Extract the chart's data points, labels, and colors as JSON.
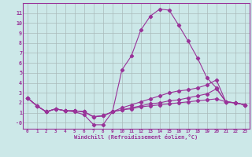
{
  "x": [
    0,
    1,
    2,
    3,
    4,
    5,
    6,
    7,
    8,
    9,
    10,
    11,
    12,
    13,
    14,
    15,
    16,
    17,
    18,
    19,
    20,
    21,
    22,
    23
  ],
  "line1": [
    2.5,
    1.7,
    1.1,
    1.4,
    1.2,
    1.1,
    0.8,
    -0.2,
    -0.2,
    1.1,
    5.3,
    6.7,
    9.3,
    10.7,
    11.4,
    11.3,
    9.8,
    8.2,
    6.5,
    4.5,
    3.5,
    2.1,
    2.0,
    1.8
  ],
  "line2": [
    2.5,
    1.7,
    1.1,
    1.4,
    1.2,
    1.2,
    1.1,
    0.6,
    0.7,
    1.1,
    1.5,
    1.8,
    2.1,
    2.4,
    2.7,
    3.0,
    3.2,
    3.3,
    3.5,
    3.8,
    4.3,
    2.1,
    2.0,
    1.8
  ],
  "line3": [
    2.5,
    1.7,
    1.1,
    1.4,
    1.2,
    1.2,
    1.1,
    0.6,
    0.7,
    1.1,
    1.3,
    1.5,
    1.7,
    1.9,
    2.0,
    2.2,
    2.3,
    2.5,
    2.7,
    2.9,
    3.4,
    2.1,
    2.0,
    1.8
  ],
  "line4": [
    2.5,
    1.7,
    1.1,
    1.4,
    1.2,
    1.2,
    1.1,
    0.6,
    0.7,
    1.1,
    1.3,
    1.4,
    1.6,
    1.7,
    1.8,
    1.9,
    2.0,
    2.1,
    2.2,
    2.3,
    2.4,
    2.1,
    2.0,
    1.8
  ],
  "bg_color": "#cce8e8",
  "line_color": "#993399",
  "grid_color": "#aabbbb",
  "xlabel": "Windchill (Refroidissement éolien,°C)",
  "xlim": [
    -0.5,
    23.5
  ],
  "ylim": [
    -0.6,
    12.0
  ],
  "yticks": [
    0,
    1,
    2,
    3,
    4,
    5,
    6,
    7,
    8,
    9,
    10,
    11
  ],
  "ytick_labels": [
    "-0",
    "1",
    "2",
    "3",
    "4",
    "5",
    "6",
    "7",
    "8",
    "9",
    "10",
    "11"
  ],
  "xticks": [
    0,
    1,
    2,
    3,
    4,
    5,
    6,
    7,
    8,
    9,
    10,
    11,
    12,
    13,
    14,
    15,
    16,
    17,
    18,
    19,
    20,
    21,
    22,
    23
  ]
}
